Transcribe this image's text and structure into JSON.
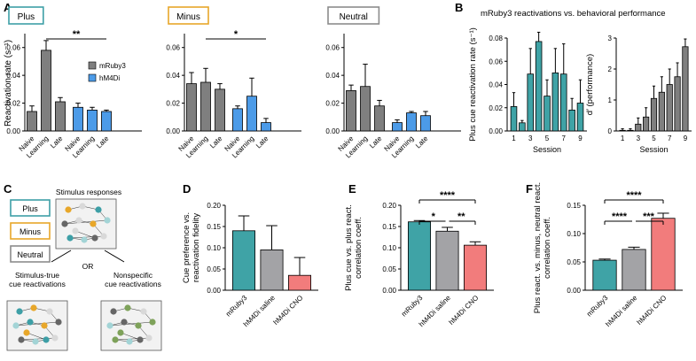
{
  "colors": {
    "mruby3_gray": "#7f7f7f",
    "hm4di_blue": "#4c9be8",
    "teal": "#3fa3a6",
    "gray_bar": "#a3a3a6",
    "salmon": "#f27c7c",
    "plus_teal": "#3d9fa6",
    "minus_orange": "#e8a72a",
    "neutral_gray": "#8c8c8c",
    "green": "#7ea25a"
  },
  "panel_letters": [
    "A",
    "B",
    "C",
    "D",
    "E",
    "F"
  ],
  "panel_a": {
    "ylabel": "Reactivation rate (s⁻¹)",
    "legend": [
      "mRuby3",
      "hM4Di"
    ],
    "groups": [
      "Naive",
      "Learning",
      "Late"
    ],
    "subplots": [
      {
        "title": "Plus",
        "ylim": [
          0,
          0.07
        ],
        "yticks": [
          "0.00",
          "0.02",
          "0.04",
          "0.06"
        ],
        "mruby3": [
          0.014,
          0.058,
          0.021
        ],
        "mruby3_err": [
          0.004,
          0.007,
          0.003
        ],
        "hm4di": [
          0.017,
          0.015,
          0.014
        ],
        "hm4di_err": [
          0.003,
          0.002,
          0.001
        ],
        "sig": "**"
      },
      {
        "title": "Minus",
        "ylim": [
          0,
          0.07
        ],
        "yticks": [
          "0.00",
          "0.02",
          "0.04",
          "0.06"
        ],
        "mruby3": [
          0.034,
          0.035,
          0.03
        ],
        "mruby3_err": [
          0.008,
          0.01,
          0.004
        ],
        "hm4di": [
          0.016,
          0.025,
          0.006
        ],
        "hm4di_err": [
          0.002,
          0.013,
          0.003
        ],
        "sig": "*"
      },
      {
        "title": "Neutral",
        "ylim": [
          0,
          0.07
        ],
        "yticks": [
          "0.00",
          "0.02",
          "0.04",
          "0.06"
        ],
        "mruby3": [
          0.029,
          0.032,
          0.018
        ],
        "mruby3_err": [
          0.004,
          0.016,
          0.004
        ],
        "hm4di": [
          0.006,
          0.013,
          0.011
        ],
        "hm4di_err": [
          0.002,
          0.001,
          0.003
        ],
        "sig": ""
      }
    ]
  },
  "panel_b": {
    "title": "mRuby3 reactivations vs. behavioral performance",
    "left": {
      "ylabel": "Plus cue reactivation rate (s⁻¹)",
      "xlabel": "Session",
      "ylim": [
        0,
        0.08
      ],
      "yticks": [
        "0.00",
        "0.02",
        "0.04",
        "0.06",
        "0.08"
      ],
      "xticks": [
        "1",
        "3",
        "5",
        "7",
        "9"
      ],
      "values": [
        0.021,
        0.007,
        0.049,
        0.077,
        0.03,
        0.05,
        0.049,
        0.018,
        0.024
      ],
      "errors": [
        0.012,
        0.002,
        0.022,
        0.008,
        0.014,
        0.021,
        0.026,
        0.01,
        0.02
      ]
    },
    "right": {
      "ylabel": "d′ (performance)",
      "xlabel": "Session",
      "ylim": [
        0,
        3
      ],
      "yticks": [
        "0",
        "1",
        "2",
        "3"
      ],
      "xticks": [
        "1",
        "3",
        "5",
        "7",
        "9"
      ],
      "values": [
        0.02,
        0.02,
        0.22,
        0.45,
        1.05,
        1.25,
        1.5,
        1.75,
        2.72
      ],
      "errors": [
        0.05,
        0.05,
        0.2,
        0.3,
        0.4,
        0.5,
        0.5,
        0.45,
        0.25
      ]
    }
  },
  "panel_c": {
    "cues": [
      "Plus",
      "Minus",
      "Neutral"
    ],
    "top_label": "Stimulus responses",
    "left_label": "Stimulus-true cue reactivations",
    "left_label_lines": [
      "Stimulus-true",
      "cue reactivations"
    ],
    "right_label": "Nonspecific cue reactivations",
    "right_label_lines": [
      "Nonspecific",
      "cue reactivations"
    ],
    "or_label": "OR"
  },
  "panel_d": {
    "ylabel": "Cue preference vs. reactivation fidelity",
    "ylabel_lines": [
      "Cue preference vs.",
      "reactivation fidelity"
    ],
    "categories": [
      "mRuby3",
      "hM4Di saline",
      "hM4Di CNO"
    ],
    "values": [
      0.14,
      0.095,
      0.035
    ],
    "errors": [
      0.035,
      0.057,
      0.042
    ],
    "ylim": [
      0,
      0.2
    ],
    "yticks": [
      "0.00",
      "0.05",
      "0.10",
      "0.15",
      "0.20"
    ]
  },
  "panel_e": {
    "ylabel": "Plus cue vs. plus react. correlation coeff.",
    "ylabel_lines": [
      "Plus cue vs. plus react.",
      "correlation coeff."
    ],
    "categories": [
      "mRuby3",
      "hM4Di saline",
      "hM4Di CNO"
    ],
    "values": [
      0.161,
      0.139,
      0.106
    ],
    "errors": [
      0.003,
      0.009,
      0.008
    ],
    "ylim": [
      0,
      0.2
    ],
    "yticks": [
      "0.00",
      "0.05",
      "0.10",
      "0.15",
      "0.20"
    ],
    "sig": [
      "****",
      "*",
      "**"
    ]
  },
  "panel_f": {
    "ylabel": "Plus react. vs. minus, neutral react. correlation coeff.",
    "ylabel_lines": [
      "Plus react. vs. minus, neutral react.",
      "correlation coeff."
    ],
    "categories": [
      "mRuby3",
      "hM4Di saline",
      "hM4Di CNO"
    ],
    "values": [
      0.053,
      0.072,
      0.127
    ],
    "errors": [
      0.002,
      0.004,
      0.009
    ],
    "ylim": [
      0,
      0.15
    ],
    "yticks": [
      "0.00",
      "0.05",
      "0.10",
      "0.15"
    ],
    "sig": [
      "****",
      "****",
      "***"
    ]
  },
  "chart_data": [
    {
      "panel": "A-Plus",
      "type": "bar",
      "categories": [
        "Naive",
        "Learning",
        "Late"
      ],
      "series": [
        {
          "name": "mRuby3",
          "values": [
            0.014,
            0.058,
            0.021
          ]
        },
        {
          "name": "hM4Di",
          "values": [
            0.017,
            0.015,
            0.014
          ]
        }
      ],
      "ylabel": "Reactivation rate (s⁻¹)",
      "ylim": [
        0,
        0.07
      ]
    },
    {
      "panel": "A-Minus",
      "type": "bar",
      "categories": [
        "Naive",
        "Learning",
        "Late"
      ],
      "series": [
        {
          "name": "mRuby3",
          "values": [
            0.034,
            0.035,
            0.03
          ]
        },
        {
          "name": "hM4Di",
          "values": [
            0.016,
            0.025,
            0.006
          ]
        }
      ],
      "ylim": [
        0,
        0.07
      ]
    },
    {
      "panel": "A-Neutral",
      "type": "bar",
      "categories": [
        "Naive",
        "Learning",
        "Late"
      ],
      "series": [
        {
          "name": "mRuby3",
          "values": [
            0.029,
            0.032,
            0.018
          ]
        },
        {
          "name": "hM4Di",
          "values": [
            0.006,
            0.013,
            0.011
          ]
        }
      ],
      "ylim": [
        0,
        0.07
      ]
    },
    {
      "panel": "B-left",
      "type": "bar",
      "x": [
        1,
        2,
        3,
        4,
        5,
        6,
        7,
        8,
        9
      ],
      "values": [
        0.021,
        0.007,
        0.049,
        0.077,
        0.03,
        0.05,
        0.049,
        0.018,
        0.024
      ],
      "xlabel": "Session",
      "ylabel": "Plus cue reactivation rate (s⁻¹)",
      "ylim": [
        0,
        0.08
      ]
    },
    {
      "panel": "B-right",
      "type": "bar",
      "x": [
        1,
        2,
        3,
        4,
        5,
        6,
        7,
        8,
        9
      ],
      "values": [
        0.02,
        0.02,
        0.22,
        0.45,
        1.05,
        1.25,
        1.5,
        1.75,
        2.72
      ],
      "xlabel": "Session",
      "ylabel": "d′ (performance)",
      "ylim": [
        0,
        3
      ]
    },
    {
      "panel": "D",
      "type": "bar",
      "categories": [
        "mRuby3",
        "hM4Di saline",
        "hM4Di CNO"
      ],
      "values": [
        0.14,
        0.095,
        0.035
      ],
      "ylim": [
        0,
        0.2
      ]
    },
    {
      "panel": "E",
      "type": "bar",
      "categories": [
        "mRuby3",
        "hM4Di saline",
        "hM4Di CNO"
      ],
      "values": [
        0.161,
        0.139,
        0.106
      ],
      "ylim": [
        0,
        0.2
      ]
    },
    {
      "panel": "F",
      "type": "bar",
      "categories": [
        "mRuby3",
        "hM4Di saline",
        "hM4Di CNO"
      ],
      "values": [
        0.053,
        0.072,
        0.127
      ],
      "ylim": [
        0,
        0.15
      ]
    }
  ]
}
